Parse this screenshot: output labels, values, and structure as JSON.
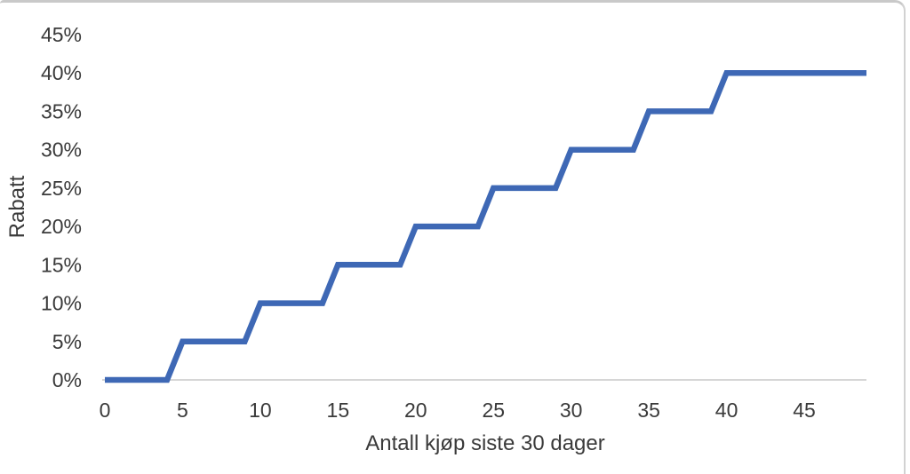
{
  "chart_data": {
    "type": "line",
    "title": "",
    "xlabel": "Antall kjøp siste 30 dager",
    "ylabel": "Rabatt",
    "xlim": [
      0,
      49
    ],
    "ylim": [
      0,
      45
    ],
    "x_ticks": [
      0,
      5,
      10,
      15,
      20,
      25,
      30,
      35,
      40,
      45
    ],
    "y_ticks": [
      0,
      5,
      10,
      15,
      20,
      25,
      30,
      35,
      40,
      45
    ],
    "y_tick_labels": [
      "0%",
      "5%",
      "10%",
      "15%",
      "20%",
      "25%",
      "30%",
      "35%",
      "40%",
      "45%"
    ],
    "grid": false,
    "legend": "none",
    "series": [
      {
        "name": "Rabatt",
        "x": [
          0,
          1,
          2,
          3,
          4,
          5,
          6,
          7,
          8,
          9,
          10,
          11,
          12,
          13,
          14,
          15,
          16,
          17,
          18,
          19,
          20,
          21,
          22,
          23,
          24,
          25,
          26,
          27,
          28,
          29,
          30,
          31,
          32,
          33,
          34,
          35,
          36,
          37,
          38,
          39,
          40,
          41,
          42,
          43,
          44,
          45,
          46,
          47,
          48,
          49
        ],
        "y": [
          0,
          0,
          0,
          0,
          0,
          5,
          5,
          5,
          5,
          5,
          10,
          10,
          10,
          10,
          10,
          15,
          15,
          15,
          15,
          15,
          20,
          20,
          20,
          20,
          20,
          25,
          25,
          25,
          25,
          25,
          30,
          30,
          30,
          30,
          30,
          35,
          35,
          35,
          35,
          35,
          40,
          40,
          40,
          40,
          40,
          40,
          40,
          40,
          40,
          40
        ]
      }
    ],
    "colors": {
      "line": "#3e68b5",
      "axis_line": "#d6d6d6",
      "text": "#3a3a3a",
      "frame_border": "#c9c9c9",
      "background": "#ffffff"
    }
  }
}
